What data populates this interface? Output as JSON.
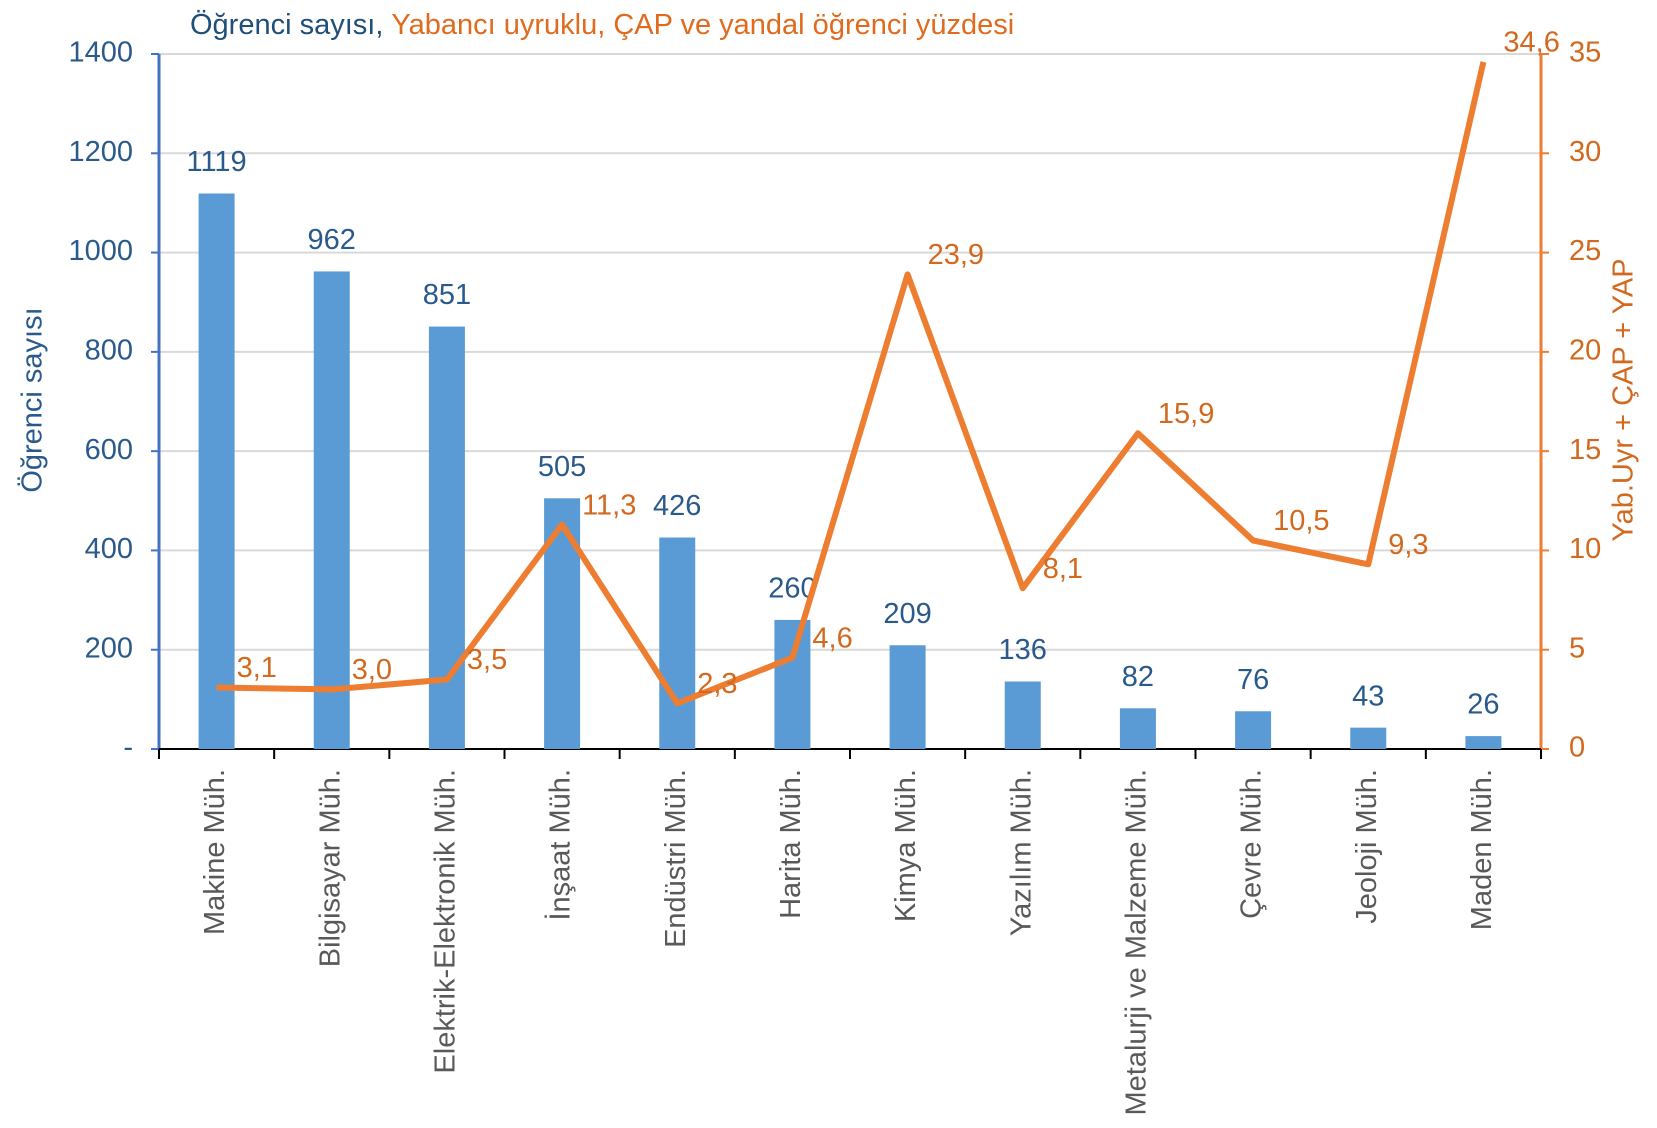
{
  "chart_data": {
    "type": "bar+line",
    "title": [
      "Öğrenci sayısı,",
      "Yabancı uyruklu, ÇAP ve yandal öğrenci yüzdesi"
    ],
    "y_label": "Öğrenci sayısı",
    "y2_label": "Yab.Uyr + ÇAP + YAP",
    "categories": [
      "Makine Müh.",
      "Bilgisayar Müh.",
      "Elektrik-Elektronik Müh.",
      "İnşaat Müh.",
      "Endüstri Müh.",
      "Harita Müh.",
      "Kimya Müh.",
      "Yazılım Müh.",
      "Metalurji ve Malzeme Müh.",
      "Çevre Müh.",
      "Jeoloji Müh.",
      "Maden Müh."
    ],
    "series": [
      {
        "name": "Öğrenci sayısı",
        "type": "bar",
        "color": "#5b9bd5",
        "values": [
          1119,
          962,
          851,
          505,
          426,
          260,
          209,
          136,
          82,
          76,
          43,
          26
        ]
      },
      {
        "name": "Yab.Uyr + ÇAP + YAP",
        "type": "line",
        "axis": "y2",
        "color": "#ed7d31",
        "values": [
          3.1,
          3.0,
          3.5,
          11.3,
          2.3,
          4.6,
          23.9,
          8.1,
          15.9,
          10.5,
          9.3,
          34.6
        ],
        "value_labels": [
          "3,1",
          "3,0",
          "3,5",
          "11,3",
          "2,3",
          "4,6",
          "23,9",
          "8,1",
          "15,9",
          "10,5",
          "9,3",
          "34,6"
        ]
      }
    ],
    "ylim": [
      0,
      1400
    ],
    "yticks": [
      {
        "value": 0,
        "label": "-"
      },
      200,
      400,
      600,
      800,
      1000,
      1200,
      1400
    ],
    "y2lim": [
      0,
      35
    ],
    "y2ticks": [
      0,
      5,
      10,
      15,
      20,
      25,
      30,
      35
    ],
    "grid": true
  }
}
